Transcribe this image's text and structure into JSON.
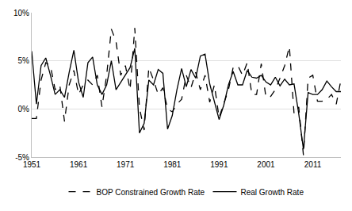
{
  "chart_data": {
    "type": "line",
    "x": [
      1951,
      1952,
      1953,
      1954,
      1955,
      1956,
      1957,
      1958,
      1959,
      1960,
      1961,
      1962,
      1963,
      1964,
      1965,
      1966,
      1967,
      1968,
      1969,
      1970,
      1971,
      1972,
      1973,
      1974,
      1975,
      1976,
      1977,
      1978,
      1979,
      1980,
      1981,
      1982,
      1983,
      1984,
      1985,
      1986,
      1987,
      1988,
      1989,
      1990,
      1991,
      1992,
      1993,
      1994,
      1995,
      1996,
      1997,
      1998,
      1999,
      2000,
      2001,
      2002,
      2003,
      2004,
      2005,
      2006,
      2007,
      2008,
      2009,
      2010,
      2011,
      2012,
      2013,
      2014,
      2015,
      2016,
      2017
    ],
    "series": [
      {
        "name": "BOP Constrained Growth Rate",
        "color": "#000000",
        "line_style": "dash",
        "values": [
          -1.0,
          -1.0,
          3.0,
          4.8,
          4.5,
          2.0,
          2.5,
          -1.3,
          2.5,
          4.0,
          1.5,
          2.5,
          3.0,
          2.5,
          3.5,
          0.2,
          3.5,
          8.3,
          7.0,
          3.5,
          4.5,
          2.0,
          8.4,
          0.1,
          -2.2,
          4.3,
          3.0,
          1.5,
          2.2,
          0.0,
          -0.3,
          0.5,
          1.0,
          3.5,
          2.2,
          3.8,
          2.0,
          3.5,
          0.7,
          2.5,
          -0.9,
          0.5,
          2.0,
          4.3,
          4.5,
          3.5,
          4.8,
          1.5,
          1.5,
          4.7,
          1.2,
          1.3,
          2.0,
          3.2,
          4.5,
          6.5,
          -0.5,
          0.2,
          -4.8,
          3.2,
          3.5,
          0.8,
          0.8,
          1.0,
          1.5,
          0.5,
          3.0
        ]
      },
      {
        "name": "Real Growth Rate",
        "color": "#000000",
        "line_style": "solid",
        "values": [
          6.0,
          0.5,
          4.5,
          5.3,
          3.5,
          1.5,
          2.0,
          1.2,
          3.8,
          6.1,
          2.8,
          1.2,
          4.8,
          5.4,
          2.5,
          1.5,
          2.5,
          5.0,
          2.0,
          2.8,
          3.5,
          4.3,
          6.3,
          -2.5,
          -1.5,
          3.0,
          2.5,
          4.1,
          3.7,
          -2.1,
          -0.7,
          2.0,
          4.2,
          2.3,
          4.1,
          3.2,
          5.5,
          5.7,
          2.6,
          0.7,
          -1.1,
          0.4,
          2.5,
          3.9,
          2.5,
          2.5,
          4.0,
          3.3,
          3.2,
          3.5,
          2.8,
          2.5,
          3.3,
          2.4,
          3.1,
          2.5,
          2.6,
          -0.5,
          -4.2,
          1.7,
          1.5,
          1.5,
          2.0,
          2.9,
          2.3,
          1.8,
          1.8
        ]
      }
    ],
    "xlim": [
      1951,
      2017
    ],
    "xticks": [
      1951,
      1961,
      1971,
      1981,
      1991,
      2001,
      2011
    ],
    "ylim": [
      -5,
      10
    ],
    "yticks": [
      {
        "value": -5,
        "label": "-5%"
      },
      {
        "value": 0,
        "label": "0%"
      },
      {
        "value": 5,
        "label": "5%"
      },
      {
        "value": 10,
        "label": "10%"
      }
    ],
    "grid": true,
    "legend": "bottom"
  }
}
